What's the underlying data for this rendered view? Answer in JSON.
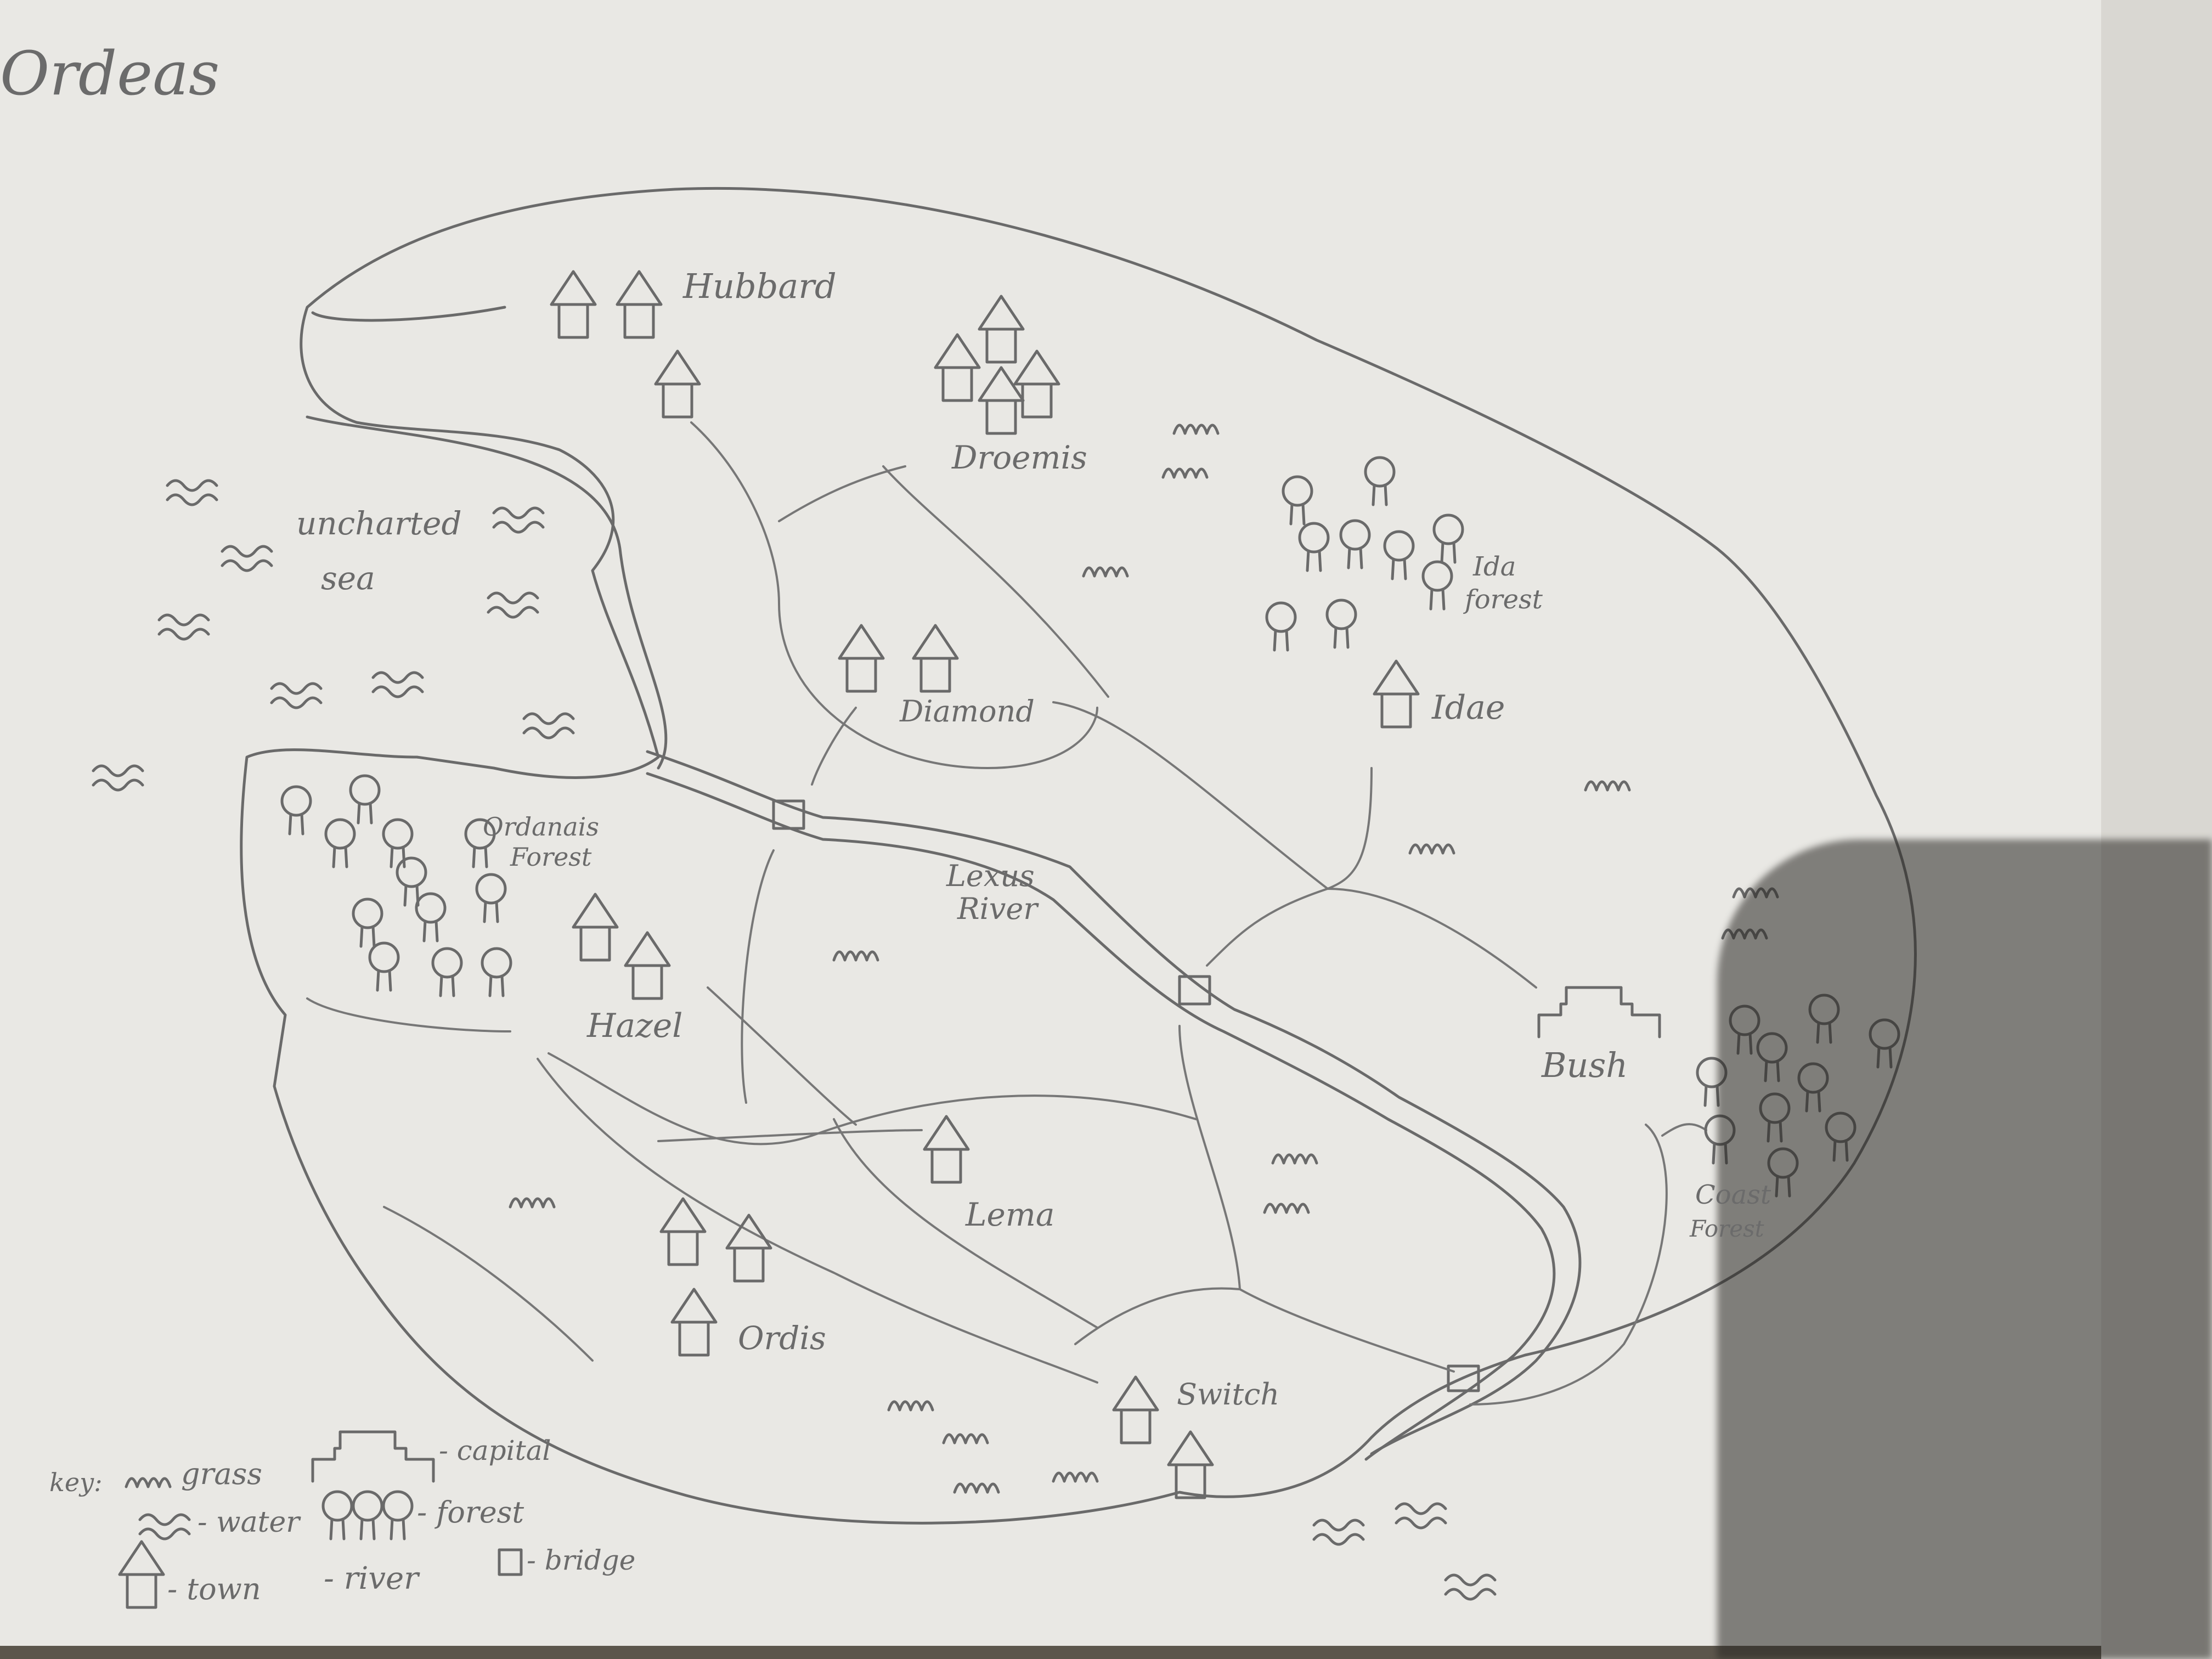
{
  "map": {
    "title": "Ordeas",
    "labels": {
      "hubbard": "Hubbard",
      "droemis": "Droemis",
      "uncharted": "uncharted",
      "sea": "sea",
      "ida_forest_1": "Ida",
      "ida_forest_2": "forest",
      "diamond": "Diamond",
      "idae": "Idae",
      "ordanais_1": "Ordanais",
      "ordanais_2": "Forest",
      "lexus_1": "Lexus",
      "lexus_2": "River",
      "hazel": "Hazel",
      "bush": "Bush",
      "lema": "Lema",
      "ordis": "Ordis",
      "coast_1": "Coast",
      "coast_2": "Forest",
      "switch": "Switch"
    },
    "legend": {
      "key_label": "key:",
      "grass": "grass",
      "capital": "- capital",
      "water": "- water",
      "forest": "- forest",
      "town": "- town",
      "river": "- river",
      "bridge": "- bridge"
    },
    "icons": {
      "town": "house-icon",
      "capital": "castle-icon",
      "forest": "tree-icon",
      "water": "water-wave-icon",
      "grass": "grass-icon",
      "bridge": "bridge-icon"
    },
    "colors": {
      "paper": "#e9e8e4",
      "pencil": "#6a6a6a",
      "background": "#5c564c"
    }
  }
}
